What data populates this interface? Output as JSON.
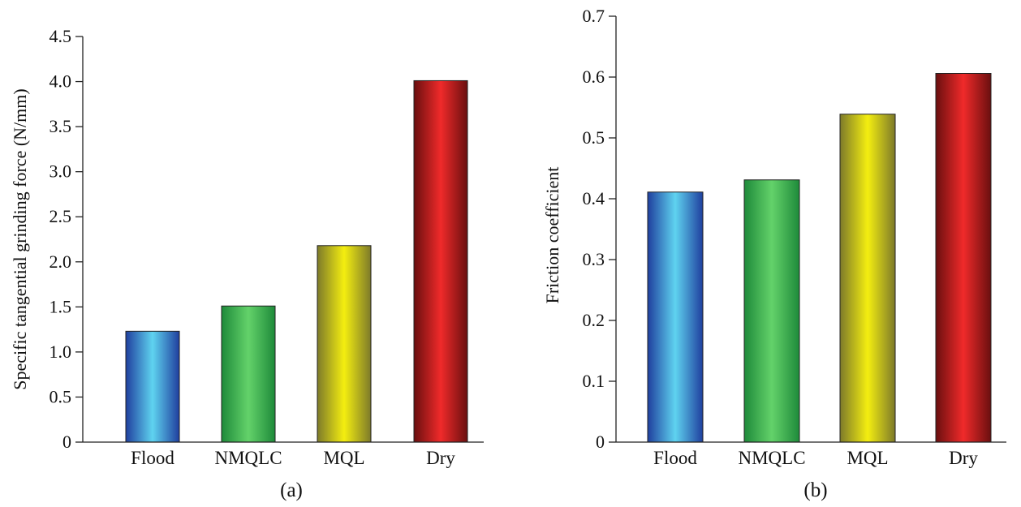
{
  "chart_data": [
    {
      "type": "bar",
      "panel_label": "(a)",
      "categories": [
        "Flood",
        "NMQLC",
        "MQL",
        "Dry"
      ],
      "values": [
        1.23,
        1.51,
        2.18,
        4.01
      ],
      "ylabel": "Specific tangential grinding force (N/mm)",
      "xlabel": "",
      "ylim": [
        0,
        4.5
      ],
      "yticks": [
        "0",
        "0.5",
        "1.0",
        "1.5",
        "2.0",
        "2.5",
        "3.0",
        "3.5",
        "4.0",
        "4.5"
      ],
      "grid": false
    },
    {
      "type": "bar",
      "panel_label": "(b)",
      "categories": [
        "Flood",
        "NMQLC",
        "MQL",
        "Dry"
      ],
      "values": [
        0.411,
        0.431,
        0.539,
        0.606
      ],
      "ylabel": "Friction coefficient",
      "xlabel": "",
      "ylim": [
        0,
        0.7
      ],
      "yticks": [
        "0",
        "0.1",
        "0.2",
        "0.3",
        "0.4",
        "0.5",
        "0.6",
        "0.7"
      ],
      "grid": false
    }
  ],
  "colors": {
    "flood": [
      "#1f3f9e",
      "#5fd3f0",
      "#1f3f9e"
    ],
    "nmqlc": [
      "#1e8a3a",
      "#63d26a",
      "#1e8a3a"
    ],
    "mql": [
      "#7d7a2a",
      "#f4ee10",
      "#7d7a2a"
    ],
    "dry": [
      "#6a0f0f",
      "#f02a2a",
      "#6a0f0f"
    ]
  }
}
